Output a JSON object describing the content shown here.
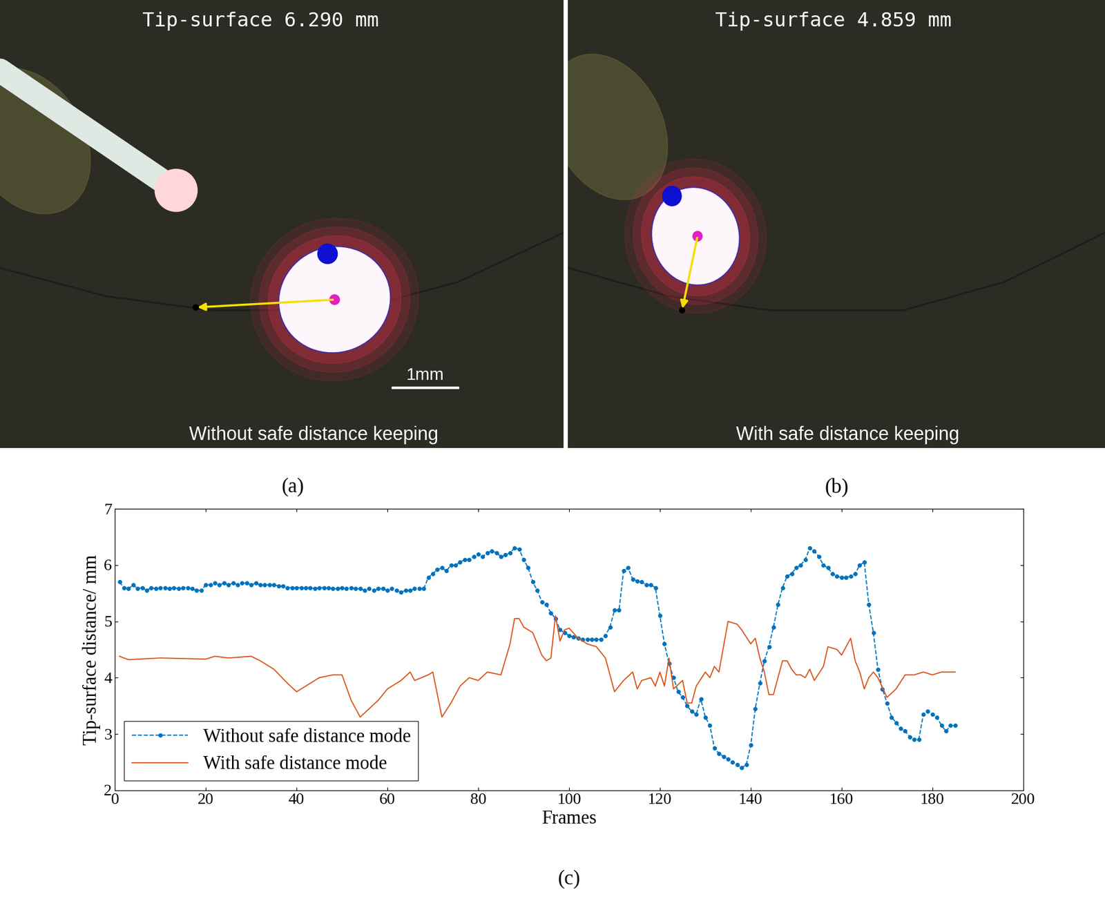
{
  "panels": [
    {
      "label": "(a)",
      "header": "Tip-surface 6.290 mm",
      "caption": "Without safe distance keeping",
      "scale_bar": "1mm"
    },
    {
      "label": "(b)",
      "header": "Tip-surface 4.859 mm",
      "caption": "With safe distance keeping"
    }
  ],
  "chart_data": {
    "type": "line",
    "label": "(c)",
    "x_label": "Frames",
    "y_label": "Tip-surface distance/ mm",
    "xlim": [
      0,
      200
    ],
    "xticks": [
      0,
      20,
      40,
      60,
      80,
      100,
      120,
      140,
      160,
      180,
      200
    ],
    "ylim": [
      2,
      7
    ],
    "yticks": [
      2,
      3,
      4,
      5,
      6,
      7
    ],
    "legend": "lower left",
    "grid": false,
    "series": [
      {
        "name": "Without safe distance mode",
        "color": "#0072bd",
        "marker": "o",
        "line_style": "dashed",
        "x": [
          1,
          2,
          3,
          4,
          5,
          6,
          7,
          8,
          9,
          10,
          11,
          12,
          13,
          14,
          15,
          16,
          17,
          18,
          19,
          20,
          21,
          22,
          23,
          24,
          25,
          26,
          27,
          28,
          29,
          30,
          31,
          32,
          33,
          34,
          35,
          36,
          37,
          38,
          39,
          40,
          41,
          42,
          43,
          44,
          45,
          46,
          47,
          48,
          49,
          50,
          51,
          52,
          53,
          54,
          55,
          56,
          57,
          58,
          59,
          60,
          61,
          62,
          63,
          64,
          65,
          66,
          67,
          68,
          69,
          70,
          71,
          72,
          73,
          74,
          75,
          76,
          77,
          78,
          79,
          80,
          81,
          82,
          83,
          84,
          85,
          86,
          87,
          88,
          89,
          90,
          91,
          92,
          93,
          94,
          95,
          96,
          97,
          98,
          99,
          100,
          101,
          102,
          103,
          104,
          105,
          106,
          107,
          108,
          109,
          110,
          111,
          112,
          113,
          114,
          115,
          116,
          117,
          118,
          119,
          120,
          121,
          122,
          123,
          124,
          125,
          126,
          127,
          128,
          129,
          130,
          131,
          132,
          133,
          134,
          135,
          136,
          137,
          138,
          139,
          140,
          141,
          142,
          143,
          144,
          145,
          146,
          147,
          148,
          149,
          150,
          151,
          152,
          153,
          154,
          155,
          156,
          157,
          158,
          159,
          160,
          161,
          162,
          163,
          164,
          165,
          166,
          167,
          168,
          169,
          170,
          171,
          172,
          173,
          174,
          175,
          176,
          177,
          178,
          179,
          180,
          181,
          182,
          183,
          184,
          185
        ],
        "values": [
          5.7,
          5.6,
          5.58,
          5.65,
          5.58,
          5.6,
          5.55,
          5.6,
          5.58,
          5.6,
          5.6,
          5.58,
          5.6,
          5.58,
          5.6,
          5.6,
          5.58,
          5.55,
          5.55,
          5.65,
          5.65,
          5.68,
          5.65,
          5.68,
          5.65,
          5.68,
          5.65,
          5.68,
          5.68,
          5.65,
          5.68,
          5.65,
          5.65,
          5.65,
          5.65,
          5.63,
          5.63,
          5.6,
          5.6,
          5.6,
          5.6,
          5.6,
          5.6,
          5.58,
          5.6,
          5.6,
          5.6,
          5.58,
          5.58,
          5.6,
          5.58,
          5.6,
          5.58,
          5.58,
          5.55,
          5.58,
          5.55,
          5.58,
          5.58,
          5.55,
          5.58,
          5.55,
          5.52,
          5.55,
          5.55,
          5.58,
          5.58,
          5.58,
          5.78,
          5.85,
          5.92,
          5.95,
          5.9,
          6.0,
          6.0,
          6.05,
          6.1,
          6.1,
          6.15,
          6.2,
          6.15,
          6.22,
          6.25,
          6.22,
          6.15,
          6.18,
          6.22,
          6.3,
          6.28,
          6.1,
          5.95,
          5.7,
          5.55,
          5.35,
          5.3,
          5.15,
          5.05,
          4.85,
          4.8,
          4.75,
          4.72,
          4.7,
          4.68,
          4.68,
          4.68,
          4.68,
          4.68,
          4.75,
          4.9,
          5.2,
          5.2,
          5.9,
          5.95,
          5.75,
          5.72,
          5.7,
          5.65,
          5.65,
          5.6,
          5.1,
          4.6,
          4.25,
          4.0,
          3.75,
          3.65,
          3.5,
          3.4,
          3.35,
          3.62,
          3.3,
          3.15,
          2.75,
          2.65,
          2.6,
          2.55,
          2.5,
          2.45,
          2.4,
          2.45,
          2.8,
          3.45,
          3.9,
          4.3,
          4.55,
          4.9,
          5.3,
          5.6,
          5.8,
          5.85,
          5.95,
          6.0,
          6.1,
          6.3,
          6.25,
          6.15,
          6.0,
          5.95,
          5.85,
          5.8,
          5.78,
          5.78,
          5.8,
          5.85,
          6.0,
          6.05,
          5.3,
          4.8,
          4.15,
          3.8,
          3.55,
          3.3,
          3.2,
          3.1,
          3.05,
          2.95,
          2.9,
          2.9,
          3.35,
          3.4,
          3.35,
          3.3,
          3.15,
          3.05,
          3.15,
          3.15
        ]
      },
      {
        "name": "With safe distance mode",
        "color": "#d95319",
        "marker": "none",
        "line_style": "solid",
        "x": [
          1,
          3,
          10,
          20,
          22,
          25,
          30,
          32,
          35,
          38,
          40,
          42,
          45,
          48,
          50,
          52,
          54,
          56,
          58,
          60,
          63,
          65,
          66,
          69,
          70,
          72,
          74,
          76,
          78,
          80,
          82,
          85,
          87,
          88,
          89,
          90,
          92,
          94,
          95,
          96,
          97,
          98,
          99,
          100,
          102,
          104,
          106,
          108,
          110,
          112,
          114,
          115,
          116,
          118,
          119,
          120,
          121,
          122,
          123,
          125,
          126,
          127,
          128,
          130,
          131,
          132,
          133,
          134,
          135,
          137,
          138,
          140,
          141,
          142,
          143,
          144,
          145,
          146,
          147,
          148,
          149,
          150,
          151,
          152,
          153,
          154,
          156,
          157,
          159,
          160,
          162,
          163,
          164,
          165,
          166,
          167,
          168,
          170,
          172,
          174,
          176,
          178,
          180,
          182,
          185
        ],
        "values": [
          4.38,
          4.32,
          4.35,
          4.33,
          4.38,
          4.35,
          4.38,
          4.3,
          4.15,
          3.9,
          3.75,
          3.85,
          4.0,
          4.05,
          4.05,
          3.6,
          3.3,
          3.45,
          3.6,
          3.8,
          3.95,
          4.1,
          3.95,
          4.05,
          4.1,
          3.3,
          3.55,
          3.85,
          4.0,
          3.95,
          4.1,
          4.05,
          4.6,
          5.05,
          5.05,
          4.9,
          4.8,
          4.4,
          4.3,
          4.35,
          5.1,
          4.65,
          4.85,
          4.88,
          4.7,
          4.6,
          4.55,
          4.35,
          3.75,
          3.95,
          4.1,
          3.8,
          3.95,
          4.0,
          3.85,
          4.1,
          3.85,
          4.35,
          3.8,
          3.95,
          3.55,
          3.55,
          3.85,
          4.1,
          4.0,
          4.2,
          4.1,
          4.55,
          5.0,
          4.95,
          4.85,
          4.6,
          4.7,
          4.35,
          4.1,
          3.7,
          3.7,
          4.0,
          4.3,
          4.3,
          4.15,
          4.05,
          4.05,
          4.0,
          4.15,
          3.95,
          4.2,
          4.55,
          4.5,
          4.4,
          4.7,
          4.3,
          4.1,
          3.8,
          4.0,
          4.1,
          4.0,
          3.65,
          3.8,
          4.05,
          4.05,
          4.1,
          4.05,
          4.1,
          4.1
        ]
      }
    ]
  }
}
